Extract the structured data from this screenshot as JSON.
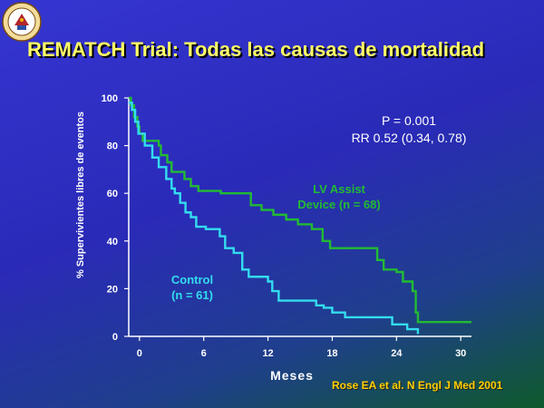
{
  "title": "REMATCH Trial: Todas las causas de mortalidad",
  "reference": "Rose EA et al. N Engl J Med  2001",
  "stats": {
    "p_value": "P = 0.001",
    "rr": "RR 0.52 (0.34, 0.78)"
  },
  "colors": {
    "title": "#ffff66",
    "control": "#33ddee",
    "lvad": "#22bb33",
    "axis": "#ffffff",
    "reference": "#ffd000"
  },
  "chart_data": {
    "type": "line",
    "title": "",
    "xlabel": "Meses",
    "ylabel": "% Supervivientes libres de eventos",
    "xlim": [
      -1,
      31
    ],
    "ylim": [
      0,
      100
    ],
    "x_ticks": [
      0,
      6,
      12,
      18,
      24,
      30
    ],
    "y_ticks": [
      0,
      20,
      40,
      60,
      80,
      100
    ],
    "grid": false,
    "series": [
      {
        "name": "LV Assist Device (n = 68)",
        "label_lines": [
          "LV Assist",
          "Device (n = 68)"
        ],
        "color": "#22bb33",
        "step": true,
        "points": [
          [
            -1,
            100
          ],
          [
            -0.8,
            97
          ],
          [
            -0.5,
            92
          ],
          [
            -0.2,
            88
          ],
          [
            0,
            85
          ],
          [
            0.3,
            82
          ],
          [
            1.8,
            80
          ],
          [
            2,
            76
          ],
          [
            2.6,
            73
          ],
          [
            3.0,
            69
          ],
          [
            4.2,
            66
          ],
          [
            4.8,
            63
          ],
          [
            5.5,
            61
          ],
          [
            7.6,
            60
          ],
          [
            10.4,
            55
          ],
          [
            11.4,
            53
          ],
          [
            12.5,
            51
          ],
          [
            13.7,
            49
          ],
          [
            14.8,
            47
          ],
          [
            16.1,
            45
          ],
          [
            17.1,
            40
          ],
          [
            17.8,
            37
          ],
          [
            20.5,
            37
          ],
          [
            22.2,
            32
          ],
          [
            22.8,
            28
          ],
          [
            24.0,
            27
          ],
          [
            24.6,
            23
          ],
          [
            25.5,
            19
          ],
          [
            25.8,
            10
          ],
          [
            26.0,
            6
          ],
          [
            31,
            6
          ]
        ]
      },
      {
        "name": "Control (n = 61)",
        "label_lines": [
          "Control",
          "(n = 61)"
        ],
        "color": "#33ddee",
        "step": true,
        "points": [
          [
            -1,
            98
          ],
          [
            -0.7,
            95
          ],
          [
            -0.4,
            90
          ],
          [
            -0.1,
            85
          ],
          [
            0.5,
            80
          ],
          [
            1.2,
            75
          ],
          [
            1.8,
            71
          ],
          [
            2.5,
            66
          ],
          [
            3.0,
            62
          ],
          [
            3.3,
            60
          ],
          [
            3.8,
            56
          ],
          [
            4.3,
            52
          ],
          [
            4.8,
            50
          ],
          [
            5.3,
            46
          ],
          [
            6.2,
            45
          ],
          [
            7.5,
            42
          ],
          [
            8.0,
            37
          ],
          [
            8.8,
            35
          ],
          [
            9.6,
            28
          ],
          [
            10.2,
            25
          ],
          [
            12.0,
            23
          ],
          [
            12.4,
            19
          ],
          [
            13.0,
            15
          ],
          [
            16.5,
            13
          ],
          [
            17.2,
            12
          ],
          [
            18.0,
            10
          ],
          [
            19.2,
            8
          ],
          [
            23.6,
            5
          ],
          [
            25.0,
            3
          ],
          [
            26.0,
            1
          ]
        ]
      }
    ]
  }
}
